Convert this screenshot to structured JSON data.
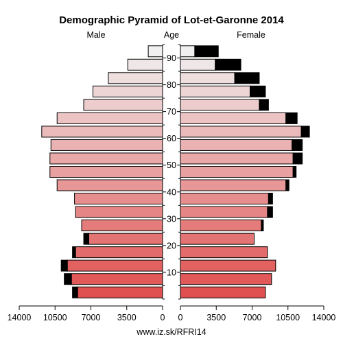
{
  "chart_data": {
    "type": "bar",
    "title": "Demographic Pyramid of Lot-et-Garonne 2014",
    "male_label": "Male",
    "age_label": "Age",
    "female_label": "Female",
    "source": "www.iz.sk/RFRI14",
    "age_groups": [
      "0-4",
      "5-9",
      "10-14",
      "15-19",
      "20-24",
      "25-29",
      "30-34",
      "35-39",
      "40-44",
      "45-49",
      "50-54",
      "55-59",
      "60-64",
      "65-69",
      "70-74",
      "75-79",
      "80-84",
      "85-89",
      "90+"
    ],
    "age_tick_labels": [
      "10",
      "20",
      "30",
      "40",
      "50",
      "60",
      "70",
      "80",
      "90"
    ],
    "x_tick_labels": [
      "14000",
      "10500",
      "7000",
      "3500",
      "0",
      "0",
      "3500",
      "7000",
      "10500",
      "14000"
    ],
    "x_max": 14000,
    "series": [
      {
        "name": "Male",
        "base": [
          8300,
          8900,
          9300,
          8500,
          7200,
          7900,
          8500,
          8600,
          10300,
          11000,
          11000,
          10900,
          11800,
          10300,
          7700,
          6800,
          5300,
          3400,
          1400
        ],
        "excess": [
          500,
          700,
          600,
          300,
          500,
          0,
          0,
          0,
          0,
          0,
          0,
          0,
          0,
          0,
          0,
          0,
          0,
          0,
          0
        ]
      },
      {
        "name": "Female",
        "base": [
          8300,
          8900,
          9300,
          8500,
          7200,
          7900,
          8500,
          8600,
          10300,
          11000,
          11000,
          10900,
          11800,
          10300,
          7700,
          6800,
          5300,
          3400,
          1400
        ],
        "excess": [
          0,
          0,
          0,
          0,
          0,
          200,
          500,
          400,
          300,
          300,
          900,
          1000,
          800,
          1100,
          900,
          1500,
          2400,
          2500,
          2300
        ]
      }
    ],
    "colors": {
      "young": "#e05050",
      "old": "#f0f0f0",
      "excess": "#000000",
      "stroke": "#000000"
    }
  }
}
